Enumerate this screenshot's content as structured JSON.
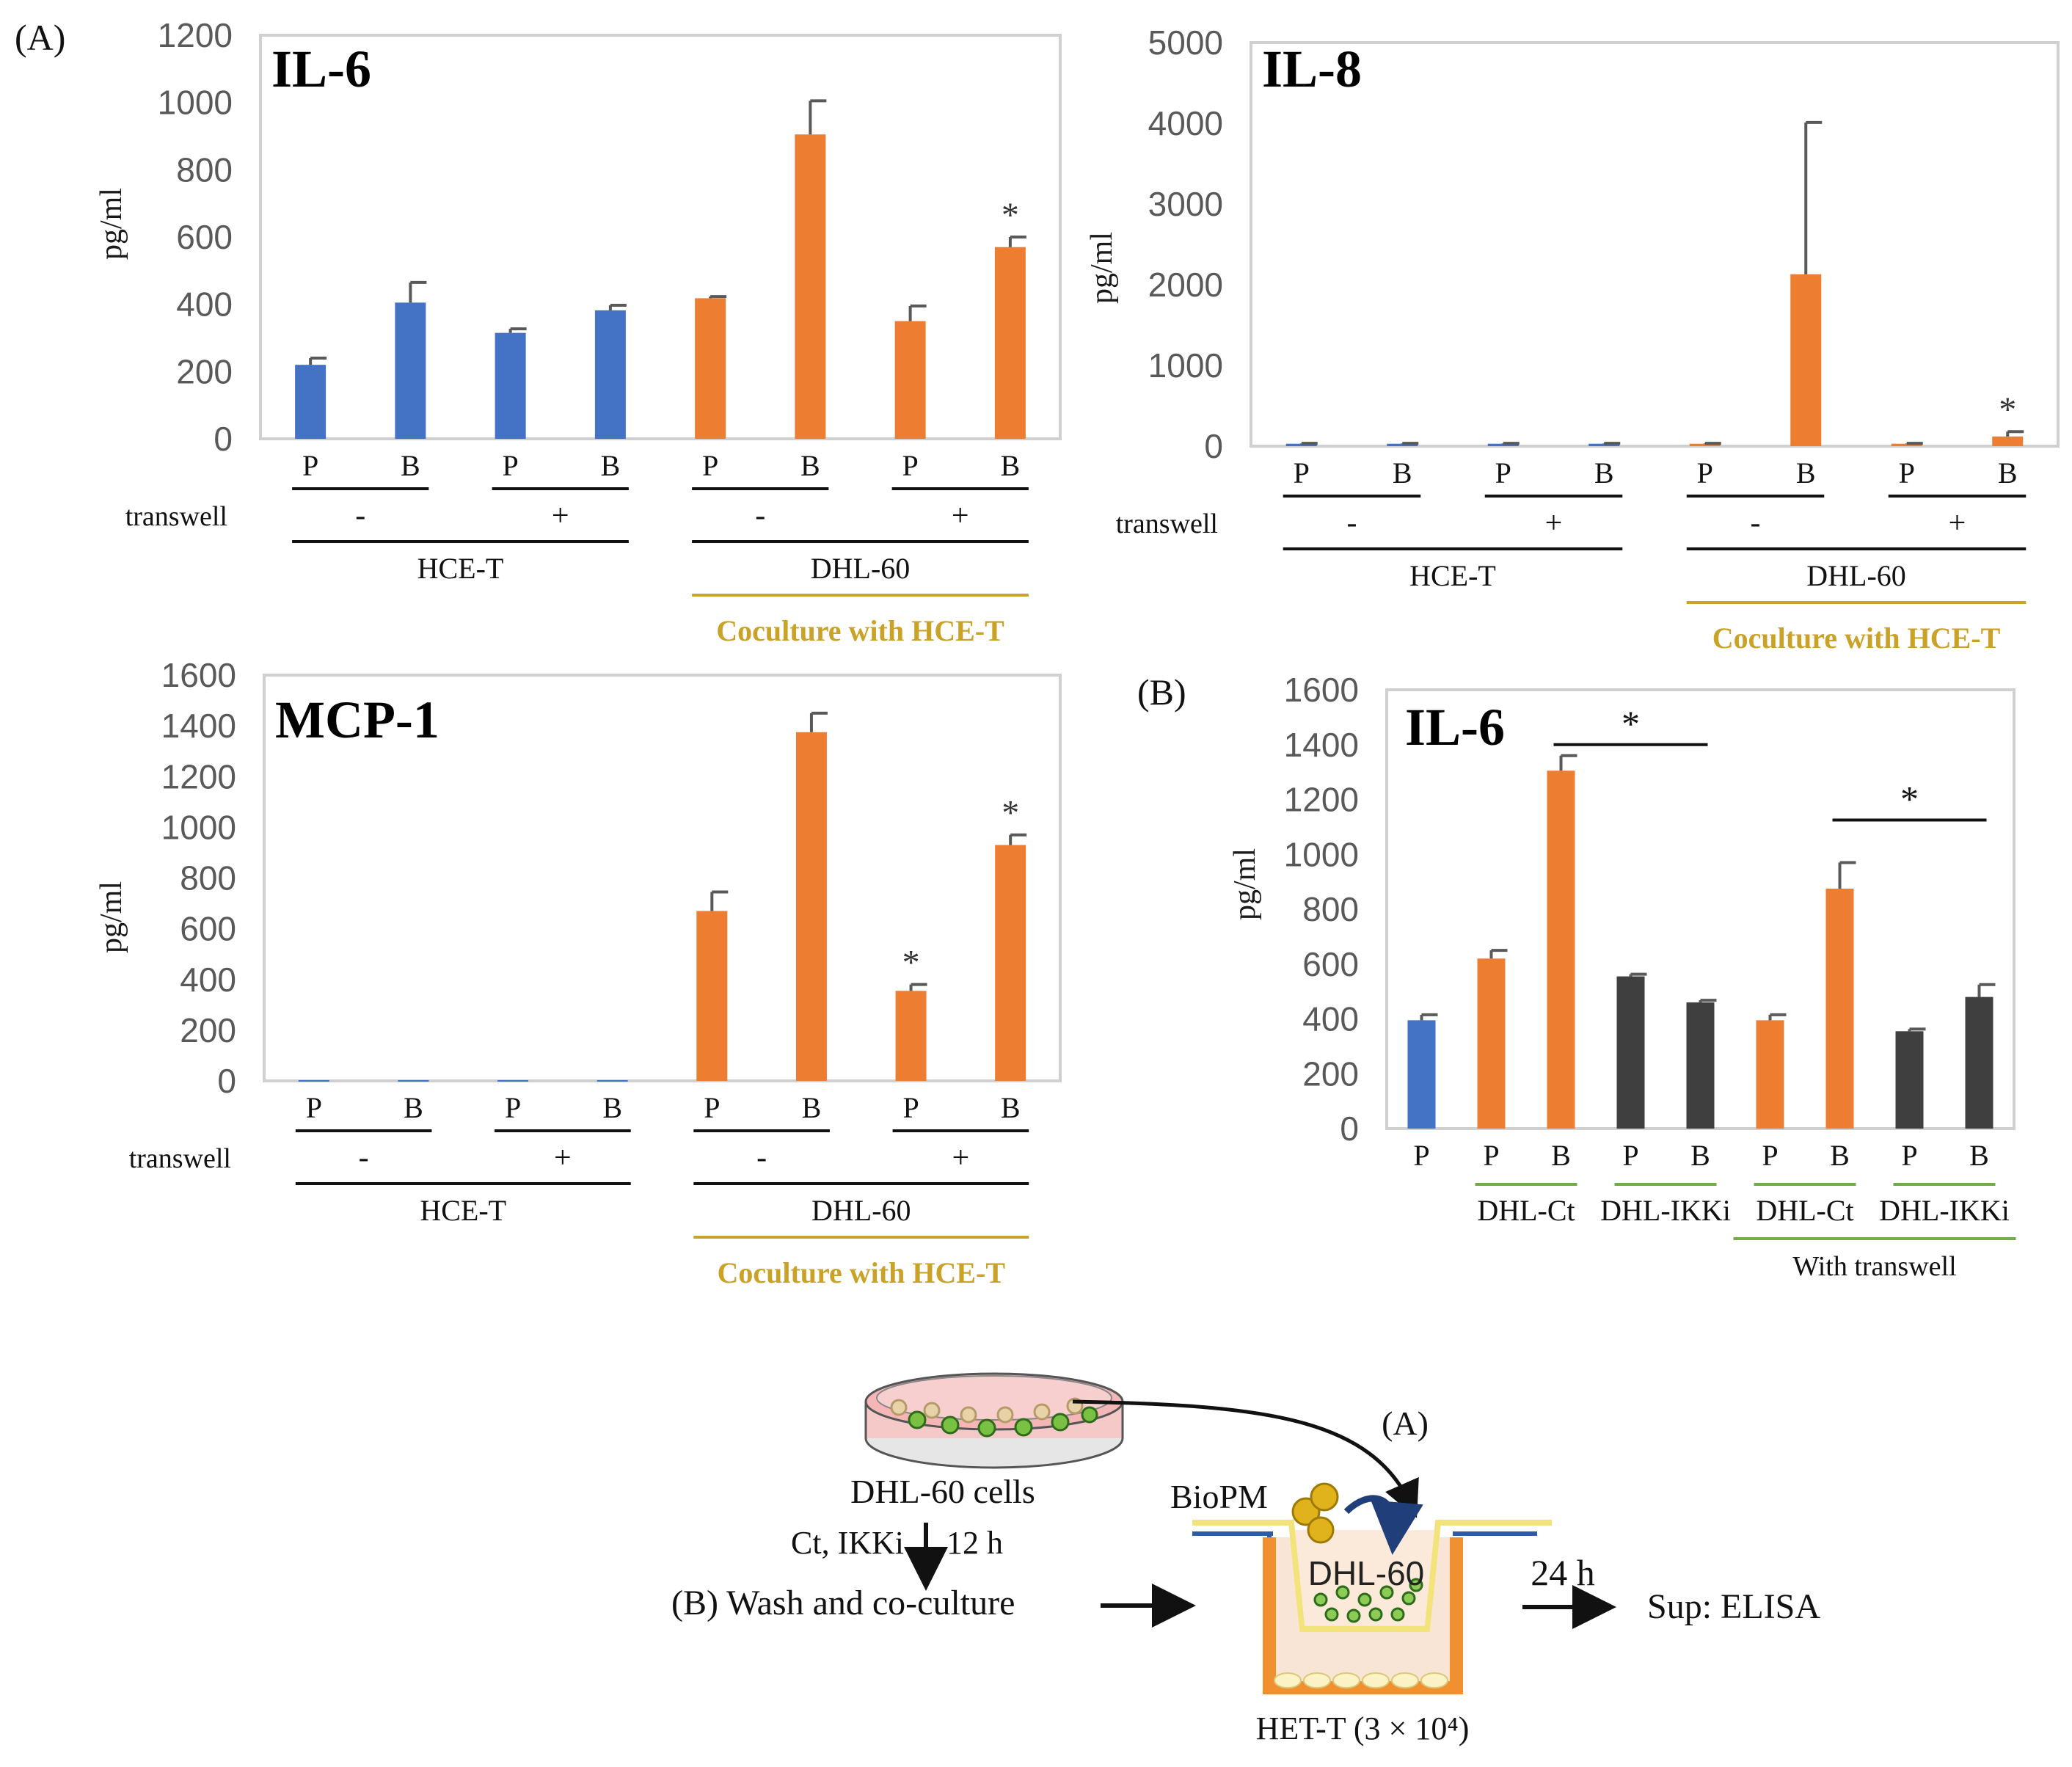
{
  "colors": {
    "blue": "#4472C4",
    "orange": "#ED7D31",
    "dark": "#3F3F3F",
    "gold": "#C9A227",
    "green": "#70AD47",
    "frame": "#D0D0D0",
    "text": "#1a1a1a",
    "tick_text": "#595959"
  },
  "labels": {
    "panel_a": "(A)",
    "panel_b": "(B)",
    "transwell": "transwell",
    "minus": "-",
    "plus": "+",
    "hce_t": "HCE-T",
    "dhl_60": "DHL-60",
    "coculture": "Coculture with HCE-T",
    "dhl_ct": "DHL-Ct",
    "dhl_ikki": "DHL-IKKi",
    "with_transwell": "With transwell",
    "star": "*"
  },
  "chart_data": [
    {
      "id": "il6_a",
      "type": "bar",
      "title": "IL-6",
      "ylabel": "pg/ml",
      "ylim": [
        0,
        1200
      ],
      "yticks": [
        "0",
        "200",
        "400",
        "600",
        "800",
        "1000",
        "1200"
      ],
      "categories": [
        "P",
        "B",
        "P",
        "B",
        "P",
        "B",
        "P",
        "B"
      ],
      "values": [
        220,
        405,
        315,
        382,
        418,
        905,
        350,
        570
      ],
      "errors": [
        20,
        60,
        12,
        15,
        5,
        100,
        45,
        30
      ],
      "colors": [
        "blue",
        "blue",
        "blue",
        "blue",
        "orange",
        "orange",
        "orange",
        "orange"
      ],
      "significant": [
        false,
        false,
        false,
        false,
        false,
        false,
        false,
        true
      ]
    },
    {
      "id": "il8_a",
      "type": "bar",
      "title": "IL-8",
      "ylabel": "pg/ml",
      "ylim": [
        0,
        5000
      ],
      "yticks": [
        "0",
        "1000",
        "2000",
        "3000",
        "4000",
        "5000"
      ],
      "categories": [
        "P",
        "B",
        "P",
        "B",
        "P",
        "B",
        "P",
        "B"
      ],
      "values": [
        30,
        30,
        30,
        30,
        30,
        2130,
        30,
        120
      ],
      "errors": [
        5,
        5,
        5,
        5,
        5,
        1880,
        5,
        60
      ],
      "colors": [
        "blue",
        "blue",
        "blue",
        "blue",
        "orange",
        "orange",
        "orange",
        "orange"
      ],
      "significant": [
        false,
        false,
        false,
        false,
        false,
        false,
        false,
        true
      ]
    },
    {
      "id": "mcp1_a",
      "type": "bar",
      "title": "MCP-1",
      "ylabel": "pg/ml",
      "ylim": [
        0,
        1600
      ],
      "yticks": [
        "0",
        "200",
        "400",
        "600",
        "800",
        "1000",
        "1200",
        "1400",
        "1600"
      ],
      "categories": [
        "P",
        "B",
        "P",
        "B",
        "P",
        "B",
        "P",
        "B"
      ],
      "values": [
        3,
        3,
        3,
        3,
        670,
        1375,
        355,
        930
      ],
      "errors": [
        0,
        0,
        0,
        0,
        75,
        75,
        25,
        40
      ],
      "colors": [
        "blue",
        "blue",
        "blue",
        "blue",
        "orange",
        "orange",
        "orange",
        "orange"
      ],
      "significant": [
        false,
        false,
        false,
        false,
        false,
        false,
        true,
        true
      ]
    },
    {
      "id": "il6_b",
      "type": "bar",
      "title": "IL-6",
      "ylabel": "pg/ml",
      "ylim": [
        0,
        1600
      ],
      "yticks": [
        "0",
        "200",
        "400",
        "600",
        "800",
        "1000",
        "1200",
        "1400",
        "1600"
      ],
      "categories": [
        "P",
        "P",
        "B",
        "P",
        "B",
        "P",
        "B",
        "P",
        "B"
      ],
      "values": [
        395,
        620,
        1305,
        555,
        460,
        395,
        875,
        355,
        480
      ],
      "errors": [
        20,
        30,
        55,
        8,
        8,
        20,
        95,
        8,
        45
      ],
      "colors": [
        "blue",
        "orange",
        "orange",
        "dark",
        "dark",
        "orange",
        "orange",
        "dark",
        "dark"
      ],
      "comparisons": [
        "B vs B (DHL-Ct vs DHL-IKKi)",
        "B vs B with transwell"
      ]
    }
  ],
  "diagram": {
    "dish_label": "DHL-60 cells",
    "treatment": "Ct, IKKi",
    "time1": "12 h",
    "step_b": "(B)  Wash and  co-culture",
    "arrow_a": "(A)",
    "biopm": "BioPM",
    "insert_label": "DHL-60",
    "time2": "24 h",
    "sup": "Sup: ELISA",
    "het_t": "HET-T (3 × 10⁴)"
  }
}
